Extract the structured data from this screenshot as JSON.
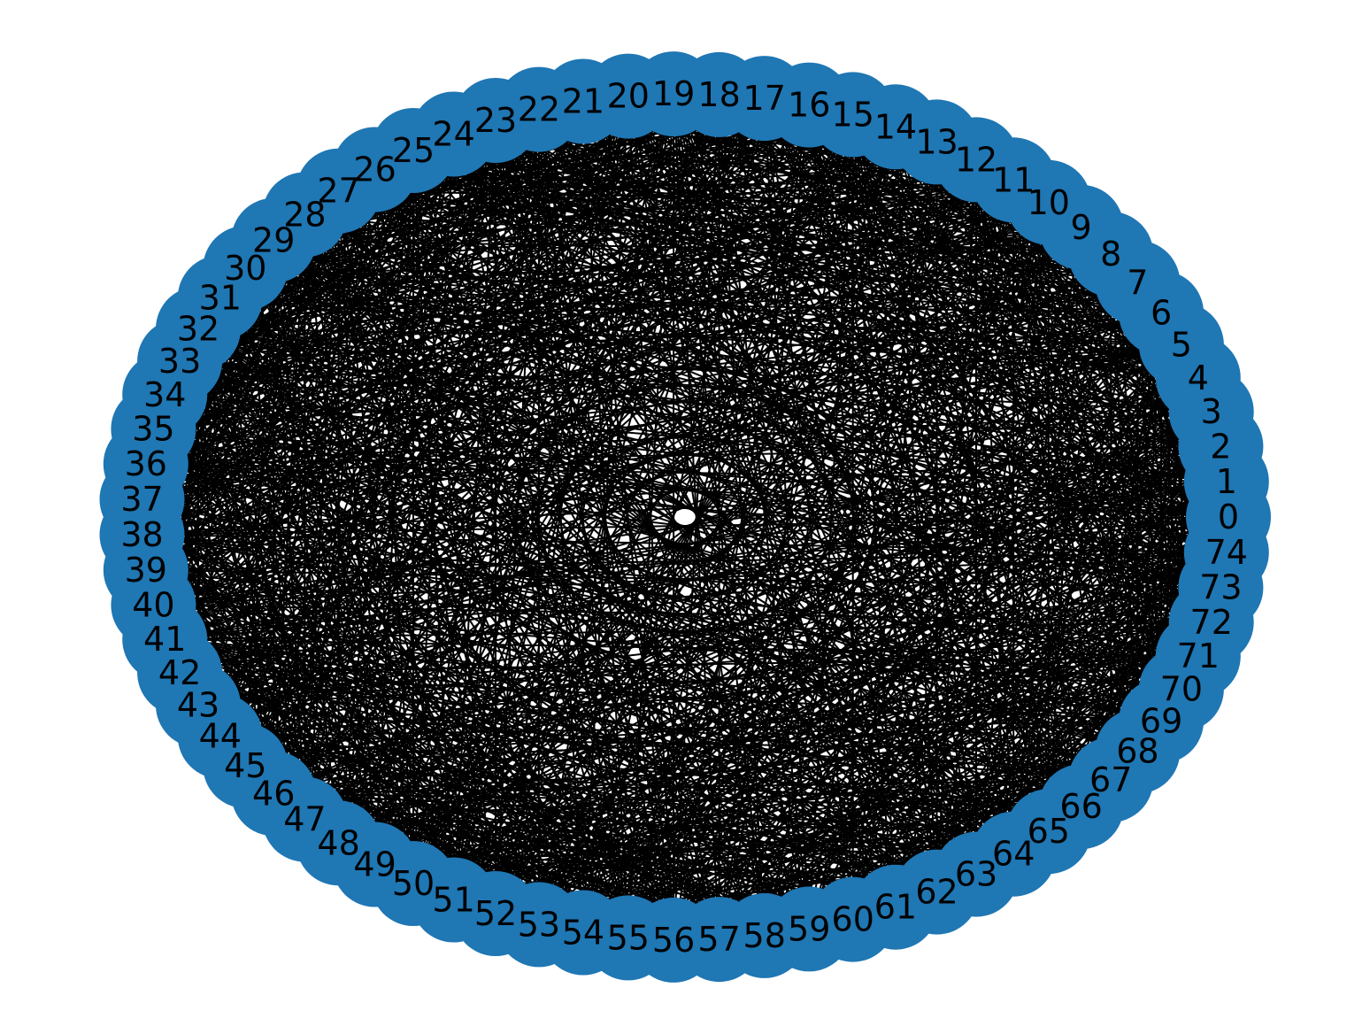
{
  "graph": {
    "layout": "circular",
    "node_count": 75,
    "node_color": "#1f77b4",
    "edge_color": "#000000",
    "label_color": "#000000",
    "node_labels": [
      "0",
      "1",
      "2",
      "3",
      "4",
      "5",
      "6",
      "7",
      "8",
      "9",
      "10",
      "11",
      "12",
      "13",
      "14",
      "15",
      "16",
      "17",
      "18",
      "19",
      "20",
      "21",
      "22",
      "23",
      "24",
      "25",
      "26",
      "27",
      "28",
      "29",
      "30",
      "31",
      "32",
      "33",
      "34",
      "35",
      "36",
      "37",
      "38",
      "39",
      "40",
      "41",
      "42",
      "43",
      "44",
      "45",
      "46",
      "47",
      "48",
      "49",
      "50",
      "51",
      "52",
      "53",
      "54",
      "55",
      "56",
      "57",
      "58",
      "59",
      "60",
      "61",
      "62",
      "63",
      "64",
      "65",
      "66",
      "67",
      "68",
      "69",
      "70",
      "71",
      "72",
      "73",
      "74"
    ],
    "edge_density": "very dense (near-complete)"
  }
}
